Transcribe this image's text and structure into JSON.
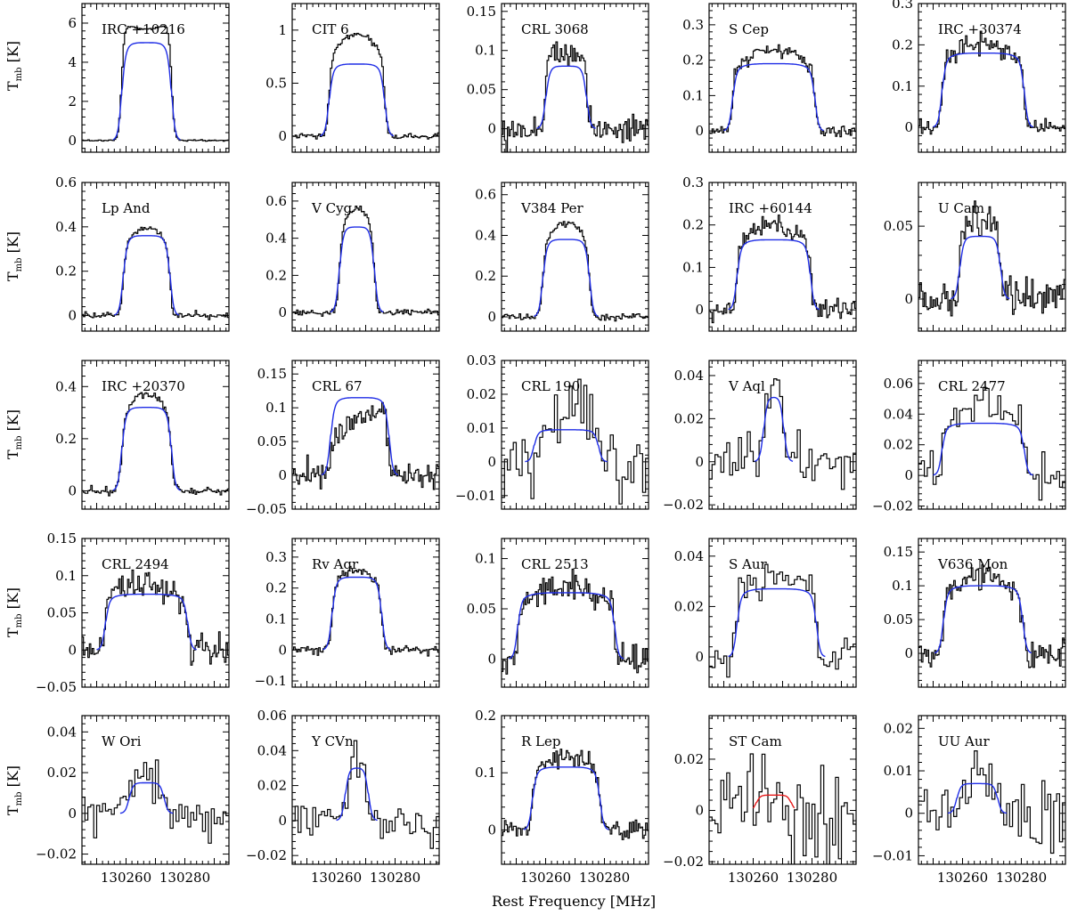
{
  "figure": {
    "ylabel_main": "T",
    "ylabel_sub": "mb",
    "ylabel_unit": " [K]",
    "xlabel": "Rest Frequency [MHz]"
  },
  "chart_data": {
    "type": "line",
    "xlim": [
      130245,
      130295
    ],
    "xticks": [
      130260,
      130280
    ],
    "xlabel": "Rest Frequency [MHz]",
    "ylabel": "Tmb [K]",
    "colors": {
      "observed": "#000000",
      "model": "#1f2de6",
      "model_alt": "#e61b1b"
    },
    "panels": [
      {
        "name": "IRC +10216",
        "ylim": [
          -0.6,
          7.0
        ],
        "yticks": [
          0,
          2,
          4,
          6
        ],
        "ytick_labels": [
          "0",
          "2",
          "4",
          "6"
        ],
        "model_peak": 5.0,
        "obs_peak": 5.7,
        "width": 17,
        "center": 130267,
        "noise": 0.02,
        "shape": "horn",
        "step": 0.5
      },
      {
        "name": "CIT 6",
        "ylim": [
          -0.15,
          1.25
        ],
        "yticks": [
          0,
          0.5,
          1
        ],
        "ytick_labels": [
          "0",
          "0.5",
          "1"
        ],
        "model_peak": 0.68,
        "obs_peak": 0.96,
        "width": 19,
        "center": 130267,
        "noise": 0.015,
        "shape": "peak",
        "step": 0.5
      },
      {
        "name": "CRL 3068",
        "ylim": [
          -0.03,
          0.16
        ],
        "yticks": [
          0,
          0.05,
          0.1,
          0.15
        ],
        "ytick_labels": [
          "0",
          "0.05",
          "0.1",
          "0.15"
        ],
        "model_peak": 0.08,
        "obs_peak": 0.1,
        "width": 14,
        "center": 130267,
        "noise": 0.01,
        "shape": "flat",
        "step": 0.5
      },
      {
        "name": "S Cep",
        "ylim": [
          -0.06,
          0.36
        ],
        "yticks": [
          0,
          0.1,
          0.2,
          0.3
        ],
        "ytick_labels": [
          "0",
          "0.1",
          "0.2",
          "0.3"
        ],
        "model_peak": 0.19,
        "obs_peak": 0.23,
        "width": 28,
        "center": 130267,
        "noise": 0.01,
        "shape": "peak",
        "step": 0.5
      },
      {
        "name": "IRC +30374",
        "ylim": [
          -0.06,
          0.3
        ],
        "yticks": [
          0,
          0.1,
          0.2,
          0.3
        ],
        "ytick_labels": [
          "0",
          "0.1",
          "0.2",
          "0.3"
        ],
        "model_peak": 0.18,
        "obs_peak": 0.2,
        "width": 28,
        "center": 130267,
        "noise": 0.012,
        "shape": "peak",
        "step": 0.5
      },
      {
        "name": "Lp And",
        "ylim": [
          -0.07,
          0.6
        ],
        "yticks": [
          0,
          0.2,
          0.4,
          0.6
        ],
        "ytick_labels": [
          "0",
          "0.2",
          "0.4",
          "0.6"
        ],
        "model_peak": 0.36,
        "obs_peak": 0.4,
        "width": 16,
        "center": 130267,
        "noise": 0.008,
        "shape": "peak",
        "step": 0.5
      },
      {
        "name": "V Cyg",
        "ylim": [
          -0.1,
          0.7
        ],
        "yticks": [
          0,
          0.2,
          0.4,
          0.6
        ],
        "ytick_labels": [
          "0",
          "0.2",
          "0.4",
          "0.6"
        ],
        "model_peak": 0.46,
        "obs_peak": 0.56,
        "width": 12,
        "center": 130267,
        "noise": 0.008,
        "shape": "peak",
        "step": 0.5
      },
      {
        "name": "V384 Per",
        "ylim": [
          -0.07,
          0.66
        ],
        "yticks": [
          0,
          0.2,
          0.4,
          0.6
        ],
        "ytick_labels": [
          "0",
          "0.2",
          "0.4",
          "0.6"
        ],
        "model_peak": 0.38,
        "obs_peak": 0.46,
        "width": 16,
        "center": 130267,
        "noise": 0.008,
        "shape": "peak",
        "step": 0.5
      },
      {
        "name": "IRC +60144",
        "ylim": [
          -0.05,
          0.3
        ],
        "yticks": [
          0,
          0.1,
          0.2,
          0.3
        ],
        "ytick_labels": [
          "0",
          "0.1",
          "0.2",
          "0.3"
        ],
        "model_peak": 0.165,
        "obs_peak": 0.2,
        "width": 25,
        "center": 130267,
        "noise": 0.012,
        "shape": "peak",
        "step": 0.5
      },
      {
        "name": "U Cam",
        "ylim": [
          -0.022,
          0.08
        ],
        "yticks": [
          0,
          0.05
        ],
        "ytick_labels": [
          "0",
          "0.05"
        ],
        "model_peak": 0.043,
        "obs_peak": 0.06,
        "width": 14,
        "center": 130266,
        "noise": 0.007,
        "shape": "peak",
        "step": 0.5
      },
      {
        "name": "IRC +20370",
        "ylim": [
          -0.07,
          0.5
        ],
        "yticks": [
          0,
          0.2,
          0.4
        ],
        "ytick_labels": [
          "0",
          "0.2",
          "0.4"
        ],
        "model_peak": 0.32,
        "obs_peak": 0.37,
        "width": 17,
        "center": 130267,
        "noise": 0.008,
        "shape": "peak",
        "step": 0.5
      },
      {
        "name": "CRL 67",
        "ylim": [
          -0.05,
          0.17
        ],
        "yticks": [
          -0.05,
          0,
          0.05,
          0.1,
          0.15
        ],
        "ytick_labels": [
          "−0.05",
          "0",
          "0.05",
          "0.1",
          "0.15"
        ],
        "model_peak": 0.115,
        "obs_peak": 0.11,
        "width": 20,
        "center": 130268,
        "noise": 0.01,
        "shape": "rise",
        "step": 0.5
      },
      {
        "name": "CRL 190",
        "ylim": [
          -0.014,
          0.03
        ],
        "yticks": [
          -0.01,
          0,
          0.01,
          0.02,
          0.03
        ],
        "ytick_labels": [
          "−0.01",
          "0",
          "0.01",
          "0.02",
          "0.03"
        ],
        "model_peak": 0.0095,
        "obs_peak": 0.016,
        "width": 22,
        "center": 130267,
        "noise": 0.005,
        "shape": "rise",
        "step": 1.0
      },
      {
        "name": "V Aql",
        "ylim": [
          -0.022,
          0.047
        ],
        "yticks": [
          -0.02,
          0,
          0.02,
          0.04
        ],
        "ytick_labels": [
          "−0.02",
          "0",
          "0.02",
          "0.04"
        ],
        "model_peak": 0.03,
        "obs_peak": 0.035,
        "width": 7,
        "center": 130267,
        "noise": 0.006,
        "shape": "peak",
        "step": 1.0
      },
      {
        "name": "CRL 2477",
        "ylim": [
          -0.022,
          0.075
        ],
        "yticks": [
          -0.02,
          0,
          0.02,
          0.04,
          0.06
        ],
        "ytick_labels": [
          "−0.02",
          "0",
          "0.02",
          "0.04",
          "0.06"
        ],
        "model_peak": 0.034,
        "obs_peak": 0.045,
        "width": 28,
        "center": 130267,
        "noise": 0.007,
        "shape": "peak",
        "step": 1.0
      },
      {
        "name": "CRL 2494",
        "ylim": [
          -0.05,
          0.15
        ],
        "yticks": [
          -0.05,
          0,
          0.05,
          0.1,
          0.15
        ],
        "ytick_labels": [
          "−0.05",
          "0",
          "0.05",
          "0.1",
          "0.15"
        ],
        "model_peak": 0.075,
        "obs_peak": 0.09,
        "width": 28,
        "center": 130267,
        "noise": 0.01,
        "shape": "peak",
        "step": 0.5
      },
      {
        "name": "Rv Aqr",
        "ylim": [
          -0.12,
          0.36
        ],
        "yticks": [
          -0.1,
          0,
          0.1,
          0.2,
          0.3
        ],
        "ytick_labels": [
          "−0.1",
          "0",
          "0.1",
          "0.2",
          "0.3"
        ],
        "model_peak": 0.235,
        "obs_peak": 0.26,
        "width": 17,
        "center": 130267,
        "noise": 0.008,
        "shape": "peak",
        "step": 0.5
      },
      {
        "name": "CRL 2513",
        "ylim": [
          -0.028,
          0.12
        ],
        "yticks": [
          0,
          0.05,
          0.1
        ],
        "ytick_labels": [
          "0",
          "0.05",
          "0.1"
        ],
        "model_peak": 0.066,
        "obs_peak": 0.07,
        "width": 33,
        "center": 130267,
        "noise": 0.008,
        "shape": "peak",
        "step": 0.5
      },
      {
        "name": "S Aur",
        "ylim": [
          -0.012,
          0.047
        ],
        "yticks": [
          0,
          0.02,
          0.04
        ],
        "ytick_labels": [
          "0",
          "0.02",
          "0.04"
        ],
        "model_peak": 0.027,
        "obs_peak": 0.03,
        "width": 27,
        "center": 130268,
        "noise": 0.004,
        "shape": "flat",
        "step": 1.0
      },
      {
        "name": "V636 Mon",
        "ylim": [
          -0.05,
          0.17
        ],
        "yticks": [
          0,
          0.05,
          0.1,
          0.15
        ],
        "ytick_labels": [
          "0",
          "0.05",
          "0.1",
          "0.15"
        ],
        "model_peak": 0.1,
        "obs_peak": 0.115,
        "width": 27,
        "center": 130267,
        "noise": 0.01,
        "shape": "peak",
        "step": 0.5
      },
      {
        "name": "W Ori",
        "ylim": [
          -0.025,
          0.048
        ],
        "yticks": [
          -0.02,
          0,
          0.02,
          0.04
        ],
        "ytick_labels": [
          "−0.02",
          "0",
          "0.02",
          "0.04"
        ],
        "model_peak": 0.015,
        "obs_peak": 0.022,
        "width": 12,
        "center": 130267,
        "noise": 0.006,
        "shape": "peak",
        "step": 1.0
      },
      {
        "name": "Y CVn",
        "ylim": [
          -0.025,
          0.06
        ],
        "yticks": [
          -0.02,
          0,
          0.02,
          0.04,
          0.06
        ],
        "ytick_labels": [
          "−0.02",
          "0",
          "0.02",
          "0.04",
          "0.06"
        ],
        "model_peak": 0.03,
        "obs_peak": 0.035,
        "width": 8,
        "center": 130267,
        "noise": 0.006,
        "shape": "peak",
        "step": 1.0
      },
      {
        "name": "R Lep",
        "ylim": [
          -0.06,
          0.2
        ],
        "yticks": [
          0,
          0.1,
          0.2
        ],
        "ytick_labels": [
          "0",
          "0.1",
          "0.2"
        ],
        "model_peak": 0.11,
        "obs_peak": 0.13,
        "width": 23,
        "center": 130267,
        "noise": 0.008,
        "shape": "peak",
        "step": 0.5
      },
      {
        "name": "ST Cam",
        "ylim": [
          -0.021,
          0.037
        ],
        "yticks": [
          -0.02,
          0,
          0.02
        ],
        "ytick_labels": [
          "−0.02",
          "0",
          "0.02"
        ],
        "model_peak": 0.006,
        "obs_peak": 0.0,
        "width": 12,
        "center": 130267,
        "noise": 0.008,
        "shape": "noise",
        "step": 1.0,
        "model_color": "red"
      },
      {
        "name": "UU Aur",
        "ylim": [
          -0.012,
          0.023
        ],
        "yticks": [
          -0.01,
          0,
          0.01,
          0.02
        ],
        "ytick_labels": [
          "−0.01",
          "0",
          "0.01",
          "0.02"
        ],
        "model_peak": 0.007,
        "obs_peak": 0.009,
        "width": 14,
        "center": 130265,
        "noise": 0.004,
        "shape": "peak",
        "step": 1.0
      }
    ]
  }
}
